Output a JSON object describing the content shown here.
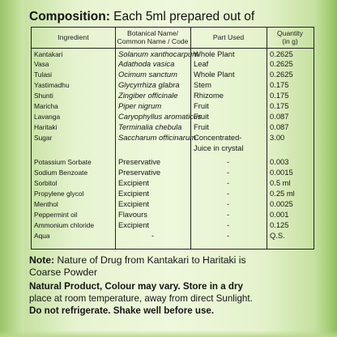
{
  "composition": {
    "title_bold": "Composition:",
    "title_rest": " Each 5ml prepared out of"
  },
  "table": {
    "headers": {
      "ingredient": "Ingredient",
      "botanical_line1": "Botanical Name/",
      "botanical_line2": "Common Name / Code",
      "part": "Part Used",
      "qty_line1": "Quantity",
      "qty_line2": "(in g)"
    },
    "rows": [
      {
        "ingredient": "Kantakari",
        "botanical": "Solanum xanthocarpum",
        "part": "Whole Plant",
        "qty": "0.2625"
      },
      {
        "ingredient": "Vasa",
        "botanical": "Adathoda vasica",
        "part": "Leaf",
        "qty": "0.2625"
      },
      {
        "ingredient": "Tulasi",
        "botanical": "Ocimum sanctum",
        "part": "Whole Plant",
        "qty": "0.2625"
      },
      {
        "ingredient": "Yastimadhu",
        "botanical": "Glycyrrhiza glabra",
        "part": "Stem",
        "qty": "0.175"
      },
      {
        "ingredient": "Shunti",
        "botanical": "Zingiber officinale",
        "part": "Rhizome",
        "qty": "0.175"
      },
      {
        "ingredient": "Maricha",
        "botanical": "Piper nigrum",
        "part": "Fruit",
        "qty": "0.175"
      },
      {
        "ingredient": "Lavanga",
        "botanical": "Caryophyllus aromaticus",
        "part": "Fruit",
        "qty": "0.087"
      },
      {
        "ingredient": "Haritaki",
        "botanical": "Terminalia chebula",
        "part": "Fruit",
        "qty": "0.087"
      },
      {
        "ingredient": "Sugar",
        "botanical": "Saccharum officinarum",
        "part": "Concentrated-",
        "qty": "3.00"
      },
      {
        "ingredient": "",
        "botanical": "",
        "part": "Juice in crystal",
        "qty": ""
      },
      {
        "ingredient": "Potassium Sorbate",
        "botanical": "Preservative",
        "part": "-",
        "qty": "0.003"
      },
      {
        "ingredient": "Sodium Benzoate",
        "botanical": "Preservative",
        "part": "-",
        "qty": "0.0015"
      },
      {
        "ingredient": "Sorbitol",
        "botanical": "Excipient",
        "part": "-",
        "qty": "0.5 ml"
      },
      {
        "ingredient": "Propylene glycol",
        "botanical": "Excipient",
        "part": "-",
        "qty": "0.25 ml"
      },
      {
        "ingredient": "Menthol",
        "botanical": "Excipient",
        "part": "-",
        "qty": "0.0025"
      },
      {
        "ingredient": "Peppermint oil",
        "botanical": "Flavours",
        "part": "-",
        "qty": "0.001"
      },
      {
        "ingredient": "Ammonium chloride",
        "botanical": "Excipient",
        "part": "-",
        "qty": "0.125"
      },
      {
        "ingredient": "Aqua",
        "botanical": "-",
        "part": "-",
        "qty": "Q.S."
      }
    ]
  },
  "note": {
    "label": "Note:",
    "text_line1": " Nature of Drug from Kantakari to Haritaki is",
    "text_line2": "Coarse Powder"
  },
  "natural": {
    "line1": "Natural Product, Colour may vary. Store in a dry",
    "line2": "place at room temperature, away from direct Sunlight.",
    "line3_a": "Do not refrigerate.",
    "line3_b": " Shake well before use."
  }
}
